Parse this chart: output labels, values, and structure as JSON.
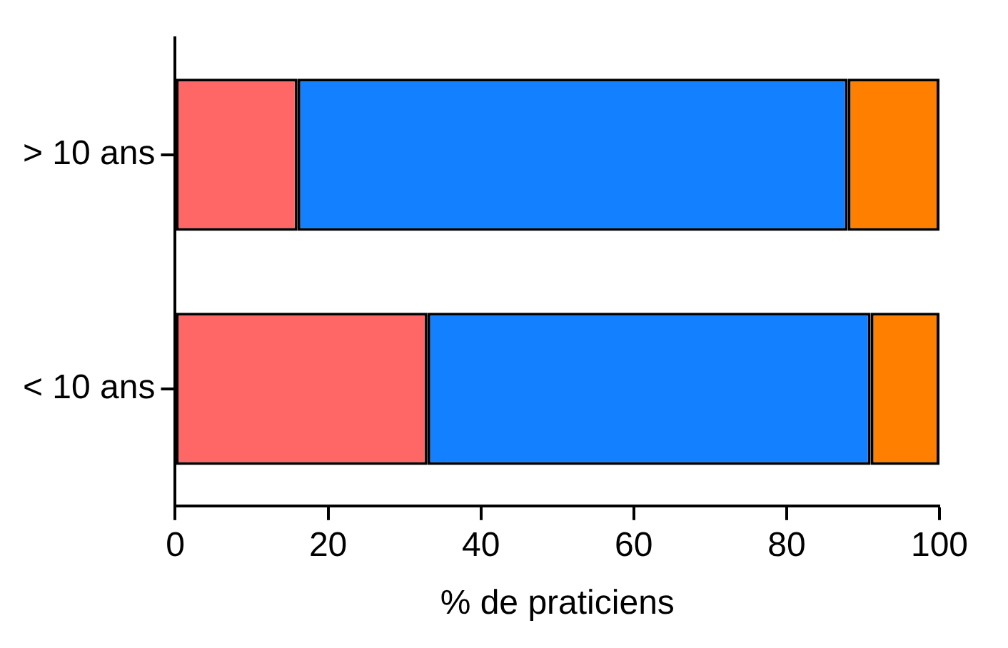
{
  "chart_data": {
    "type": "bar",
    "orientation": "horizontal",
    "stacked": true,
    "xlabel": "% de praticiens",
    "categories": [
      "> 10 ans",
      "< 10 ans"
    ],
    "series": [
      {
        "color": "#ff6666",
        "values": [
          16,
          33
        ]
      },
      {
        "color": "#1380ff",
        "values": [
          72,
          58
        ]
      },
      {
        "color": "#ff8000",
        "values": [
          12,
          9
        ]
      }
    ],
    "xlim": [
      0,
      100
    ],
    "xticks": [
      0,
      20,
      40,
      60,
      80,
      100
    ],
    "grid": false,
    "legend": false
  }
}
